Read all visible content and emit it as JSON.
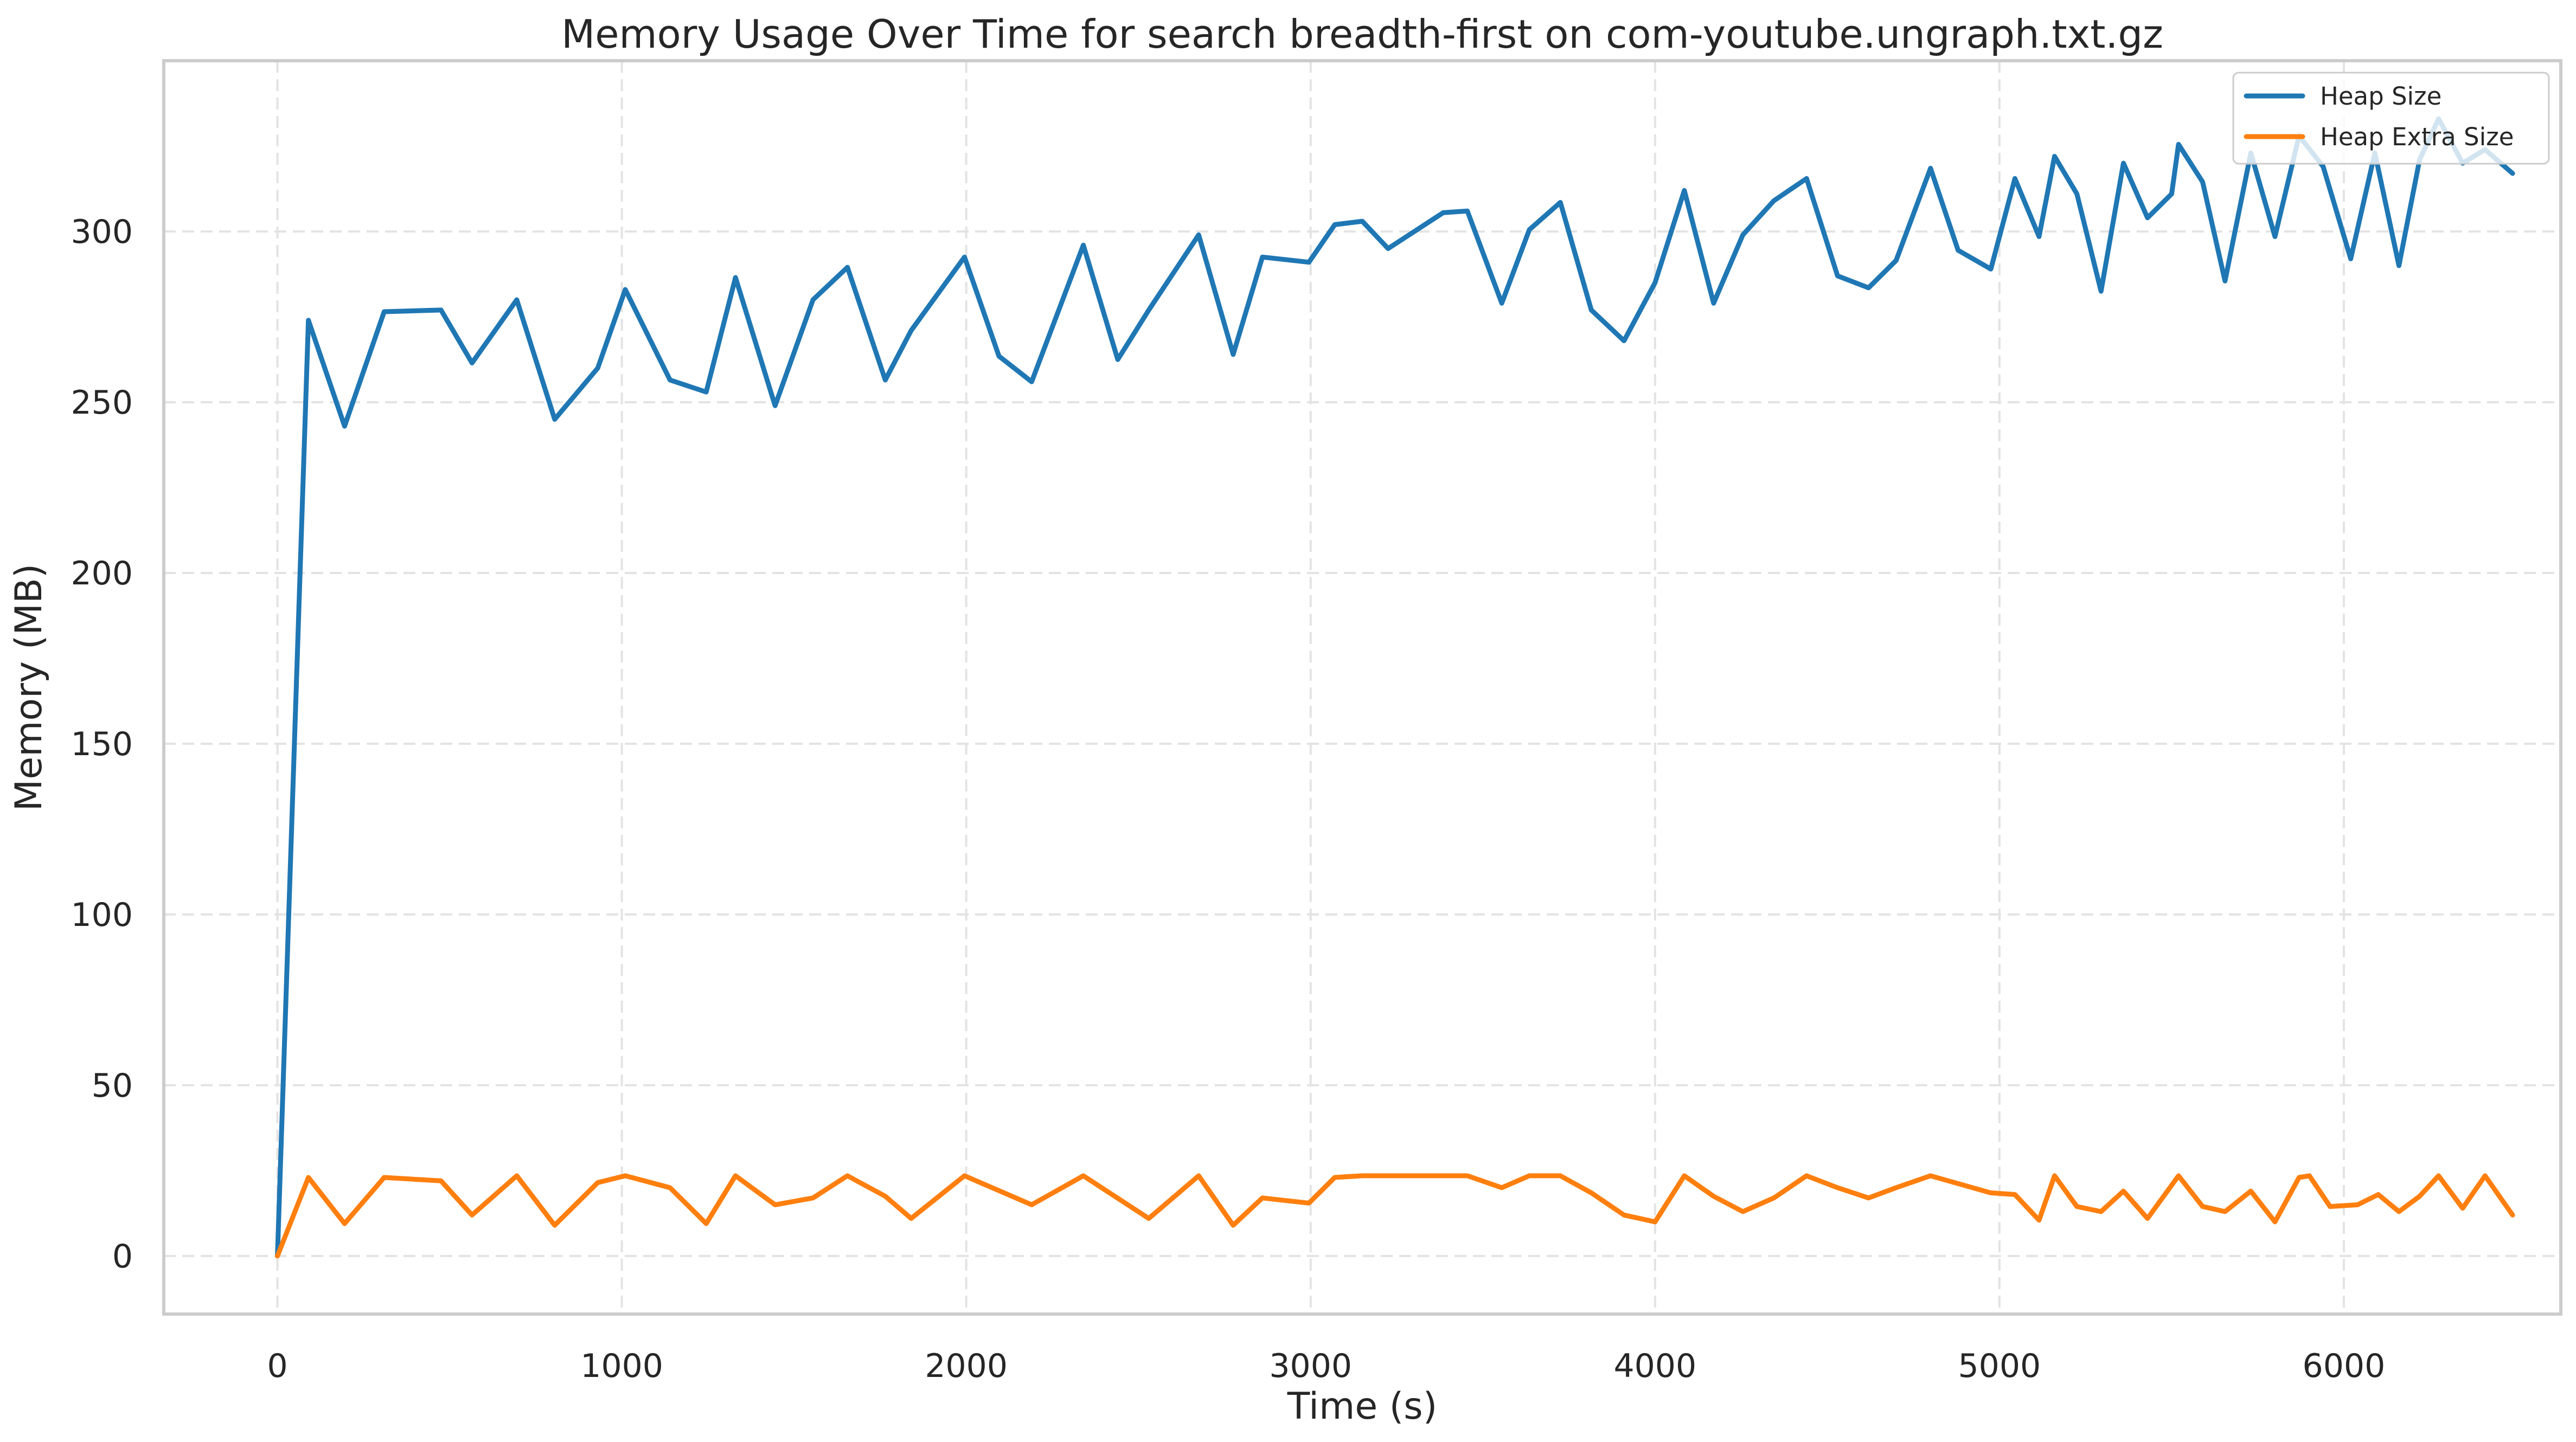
{
  "chart_data": {
    "type": "line",
    "title": "Memory Usage Over Time for search breadth-first on com-youtube.ungraph.txt.gz",
    "xlabel": "Time (s)",
    "ylabel": "Memory (MB)",
    "xlim": [
      -330,
      6630
    ],
    "ylim": [
      -17,
      350
    ],
    "xticks": [
      0,
      1000,
      2000,
      3000,
      4000,
      5000,
      6000
    ],
    "yticks": [
      0,
      50,
      100,
      150,
      200,
      250,
      300
    ],
    "grid": true,
    "legend_position": "top-right",
    "series": [
      {
        "name": "Heap Size",
        "color": "#1f77b4",
        "x": [
          0,
          90,
          195,
          310,
          475,
          565,
          695,
          805,
          930,
          1010,
          1140,
          1245,
          1330,
          1445,
          1555,
          1655,
          1765,
          1840,
          1995,
          2095,
          2190,
          2340,
          2440,
          2530,
          2675,
          2775,
          2860,
          2995,
          3070,
          3150,
          3225,
          3385,
          3455,
          3555,
          3635,
          3725,
          3815,
          3910,
          4000,
          4085,
          4170,
          4255,
          4345,
          4440,
          4530,
          4620,
          4700,
          4800,
          4880,
          4975,
          5045,
          5115,
          5160,
          5225,
          5295,
          5360,
          5430,
          5500,
          5520,
          5590,
          5655,
          5730,
          5800,
          5870,
          5940,
          6020,
          6090,
          6160,
          6220,
          6275,
          6345,
          6410,
          6490
        ],
        "values": [
          0,
          274,
          243,
          276.5,
          277,
          261.5,
          280,
          245,
          260,
          283,
          256.5,
          253,
          286.5,
          249,
          280,
          289.5,
          256.5,
          271,
          292.5,
          263.5,
          256,
          296,
          262.5,
          277,
          299,
          264,
          292.5,
          291,
          302,
          303,
          295,
          305.5,
          306,
          279,
          300.5,
          308.5,
          277,
          268,
          285,
          312,
          279,
          299,
          309,
          315.5,
          287,
          283.5,
          291.5,
          318.5,
          294.5,
          289,
          315.5,
          298.5,
          322,
          311,
          282.5,
          320,
          304,
          311,
          325.5,
          314.5,
          285.5,
          323,
          298.5,
          328,
          319,
          292,
          323,
          290,
          321,
          333,
          320,
          324,
          317
        ]
      },
      {
        "name": "Heap Extra Size",
        "color": "#ff7f0e",
        "x": [
          0,
          90,
          195,
          310,
          475,
          565,
          695,
          805,
          930,
          1010,
          1140,
          1245,
          1330,
          1445,
          1555,
          1655,
          1765,
          1840,
          1995,
          2190,
          2340,
          2530,
          2675,
          2775,
          2860,
          2995,
          3070,
          3150,
          3385,
          3455,
          3555,
          3635,
          3725,
          3815,
          3910,
          4000,
          4085,
          4170,
          4255,
          4345,
          4440,
          4530,
          4620,
          4700,
          4800,
          4975,
          5045,
          5115,
          5160,
          5225,
          5295,
          5360,
          5430,
          5520,
          5590,
          5655,
          5730,
          5800,
          5870,
          5900,
          5960,
          6040,
          6100,
          6160,
          6220,
          6275,
          6345,
          6410,
          6490
        ],
        "values": [
          0,
          23,
          9.5,
          23,
          22,
          12,
          23.5,
          9,
          21.5,
          23.5,
          20,
          9.5,
          23.5,
          15,
          17,
          23.5,
          17.5,
          11,
          23.5,
          15,
          23.5,
          11,
          23.5,
          9,
          17,
          15.5,
          23,
          23.5,
          23.5,
          23.5,
          20,
          23.5,
          23.5,
          18.5,
          12,
          10,
          23.5,
          17.5,
          13,
          17,
          23.5,
          20,
          17,
          20,
          23.5,
          18.5,
          18,
          10.5,
          23.5,
          14.5,
          13,
          19,
          11,
          23.5,
          14.5,
          13,
          19,
          10,
          23,
          23.5,
          14.5,
          15,
          18,
          13,
          17.5,
          23.5,
          14,
          23.5,
          12
        ]
      }
    ]
  }
}
